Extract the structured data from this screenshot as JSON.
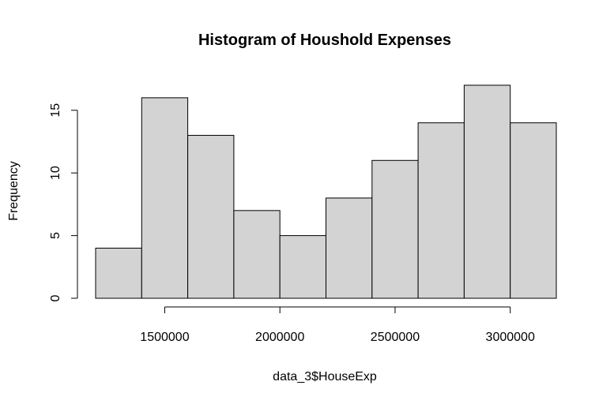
{
  "chart_data": {
    "type": "bar",
    "subtype": "histogram",
    "title": "Histogram of Houshold Expenses",
    "xlabel": "data_3$HouseExp",
    "ylabel": "Frequency",
    "bins": [
      {
        "start": 1200000,
        "end": 1400000,
        "count": 4
      },
      {
        "start": 1400000,
        "end": 1600000,
        "count": 16
      },
      {
        "start": 1600000,
        "end": 1800000,
        "count": 13
      },
      {
        "start": 1800000,
        "end": 2000000,
        "count": 7
      },
      {
        "start": 2000000,
        "end": 2200000,
        "count": 5
      },
      {
        "start": 2200000,
        "end": 2400000,
        "count": 8
      },
      {
        "start": 2400000,
        "end": 2600000,
        "count": 11
      },
      {
        "start": 2600000,
        "end": 2800000,
        "count": 14
      },
      {
        "start": 2800000,
        "end": 3000000,
        "count": 17
      },
      {
        "start": 3000000,
        "end": 3200000,
        "count": 14
      }
    ],
    "xlim": [
      1200000,
      3200000
    ],
    "ylim": [
      0,
      17
    ],
    "x_ticks": [
      1500000,
      2000000,
      2500000,
      3000000
    ],
    "x_tick_labels": [
      "1500000",
      "2000000",
      "2500000",
      "3000000"
    ],
    "y_ticks": [
      0,
      5,
      10,
      15
    ],
    "y_tick_labels": [
      "0",
      "5",
      "10",
      "15"
    ],
    "bar_color": "#d3d3d3",
    "grid": false,
    "legend": "none"
  }
}
